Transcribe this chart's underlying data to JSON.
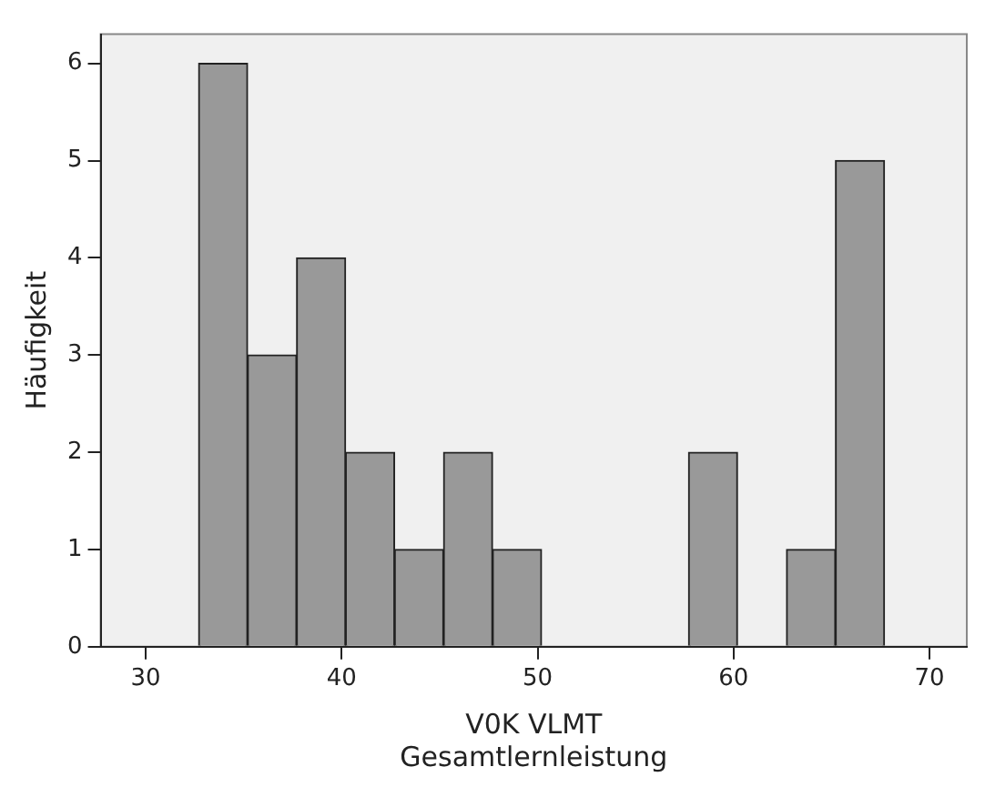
{
  "chart_data": {
    "type": "histogram",
    "xlabel": "V0K VLMT\nGesamtlernleistung",
    "ylabel": "Häufigkeit",
    "bins": [
      32.7,
      35.2,
      37.7,
      40.2,
      42.7,
      45.2,
      47.7,
      50.2,
      52.7,
      55.2,
      57.7,
      60.2,
      62.7,
      65.2,
      67.7
    ],
    "values": [
      6,
      3,
      4,
      2,
      1,
      2,
      1,
      0,
      0,
      0,
      2,
      0,
      1,
      5
    ],
    "color": "#999999",
    "xlim": [
      27.7,
      71.9
    ],
    "xticks": [
      30,
      40,
      50,
      60,
      70
    ],
    "ylim": [
      0,
      6.3
    ],
    "yticks": [
      0,
      1,
      2,
      3,
      4,
      5,
      6
    ],
    "grid": false,
    "legend": false
  }
}
